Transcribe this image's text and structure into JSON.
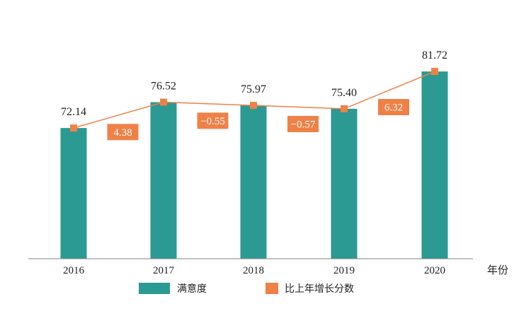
{
  "chart_data": {
    "type": "bar",
    "categories": [
      "2016",
      "2017",
      "2018",
      "2019",
      "2020"
    ],
    "x_unit_label": "年份",
    "series": [
      {
        "name": "满意度",
        "type": "bar",
        "color": "#2a9a93",
        "values": [
          72.14,
          76.52,
          75.97,
          75.4,
          81.72
        ],
        "labels": [
          "72.14",
          "76.52",
          "75.97",
          "75.40",
          "81.72"
        ]
      },
      {
        "name": "比上年增长分数",
        "type": "line",
        "color": "#ef8147",
        "marker_values": [
          72.14,
          76.52,
          75.97,
          75.4,
          81.72
        ],
        "changes": [
          4.38,
          -0.55,
          -0.57,
          6.32
        ],
        "change_labels": [
          "4.38",
          "−0.55",
          "−0.57",
          "6.32"
        ]
      }
    ],
    "ylim": [
      50,
      85
    ],
    "grid": false,
    "legend_position": "bottom"
  }
}
